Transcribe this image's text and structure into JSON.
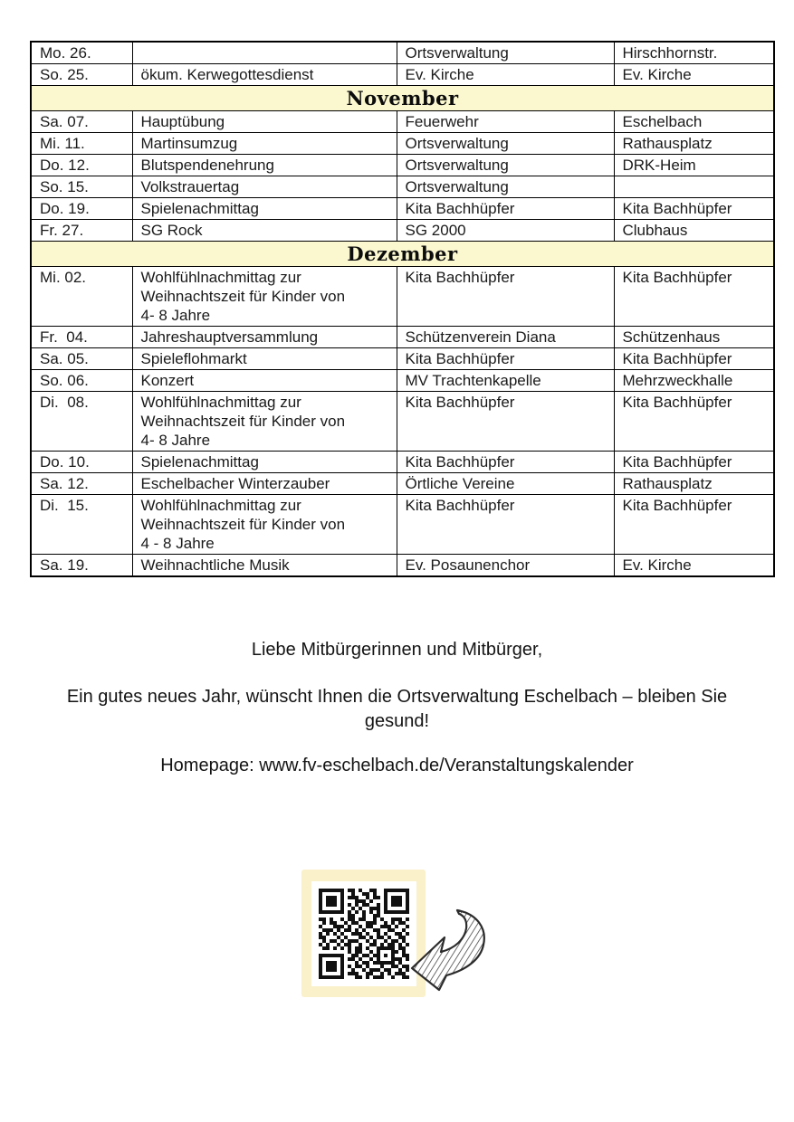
{
  "colors": {
    "band": "#fbf8d0",
    "panel": "#faf0ca",
    "border": "#000000",
    "text": "#1a1a1a"
  },
  "table": {
    "column_keys": [
      "date",
      "event",
      "organizer",
      "location"
    ],
    "rows": [
      {
        "date": "Mo. 26.",
        "event": "",
        "organizer": "Ortsverwaltung",
        "location": "Hirschhornstr."
      },
      {
        "date": "So. 25.",
        "event": "ökum. Kerwegottesdienst",
        "organizer": "Ev. Kirche",
        "location": "Ev. Kirche"
      },
      {
        "month": "November"
      },
      {
        "date": "Sa. 07.",
        "event": "Hauptübung",
        "organizer": "Feuerwehr",
        "location": "Eschelbach"
      },
      {
        "date": "Mi. 11.",
        "event": "Martinsumzug",
        "organizer": "Ortsverwaltung",
        "location": "Rathausplatz"
      },
      {
        "date": "Do. 12.",
        "event": "Blutspendenehrung",
        "organizer": "Ortsverwaltung",
        "location": "DRK-Heim"
      },
      {
        "date": "So. 15.",
        "event": "Volkstrauertag",
        "organizer": "Ortsverwaltung",
        "location": ""
      },
      {
        "date": "Do. 19.",
        "event": "Spielenachmittag",
        "organizer": "Kita Bachhüpfer",
        "location": "Kita Bachhüpfer"
      },
      {
        "date": "Fr. 27.",
        "event": "SG Rock",
        "organizer": "SG 2000",
        "location": "Clubhaus"
      },
      {
        "month": "Dezember"
      },
      {
        "date": "Mi. 02.",
        "event": "Wohlfühlnachmittag zur\nWeihnachtszeit für Kinder von\n4- 8 Jahre",
        "organizer": "Kita Bachhüpfer",
        "location": "Kita Bachhüpfer"
      },
      {
        "date": "Fr.  04.",
        "event": "Jahreshauptversammlung",
        "organizer": "Schützenverein Diana",
        "location": "Schützenhaus"
      },
      {
        "date": "Sa. 05.",
        "event": "Spieleflohmarkt",
        "organizer": "Kita Bachhüpfer",
        "location": "Kita Bachhüpfer"
      },
      {
        "date": "So. 06.",
        "event": "Konzert",
        "organizer": "MV Trachtenkapelle",
        "location": "Mehrzweckhalle"
      },
      {
        "date": "Di.  08.",
        "event": "Wohlfühlnachmittag zur\nWeihnachtszeit für Kinder von\n4- 8 Jahre",
        "organizer": "Kita Bachhüpfer",
        "location": "Kita Bachhüpfer"
      },
      {
        "date": "Do. 10.",
        "event": "Spielenachmittag",
        "organizer": "Kita Bachhüpfer",
        "location": "Kita Bachhüpfer"
      },
      {
        "date": "Sa. 12.",
        "event": "Eschelbacher Winterzauber",
        "organizer": "Örtliche Vereine",
        "location": "Rathausplatz"
      },
      {
        "date": "Di.  15.",
        "event": "Wohlfühlnachmittag zur\nWeihnachtszeit für Kinder von\n4 - 8 Jahre",
        "organizer": "Kita Bachhüpfer",
        "location": "Kita Bachhüpfer"
      },
      {
        "date": "Sa. 19.",
        "event": "Weihnachtliche Musik",
        "organizer": "Ev. Posaunenchor",
        "location": "Ev. Kirche"
      }
    ]
  },
  "closing": {
    "greeting": "Liebe Mitbürgerinnen und Mitbürger,",
    "wish": "Ein gutes neues Jahr, wünscht Ihnen die Ortsverwaltung Eschelbach – bleiben Sie\ngesund!",
    "homepage": "Homepage: www.fv-eschelbach.de/Veranstaltungskalender"
  },
  "qr": {
    "matrix": [
      "1111111011010011001111111",
      "1000001001001101001000001",
      "1011101011100101101011101",
      "1011101000111010001011101",
      "1011101010101100101011101",
      "1000001001010011101000001",
      "1111111010101010101111111",
      "0000000011001001100000000",
      "1101001011011001010011101",
      "0101100101100111001010110",
      "1000111010010110011101001",
      "0111010110101001100110010",
      "1010101001110100101001101",
      "1100010100011010110100110",
      "0101101011100101001011010",
      "1010010110010011010110101",
      "0110101010110100111110110",
      "0000000010110010100011010",
      "1111111001101101101010011",
      "1000001011010010100011101",
      "1011101000101101111110100",
      "1011101010110100010011011",
      "1011101001001011101100101",
      "1000001011100110010101110",
      "1111111000110101110010011"
    ]
  }
}
